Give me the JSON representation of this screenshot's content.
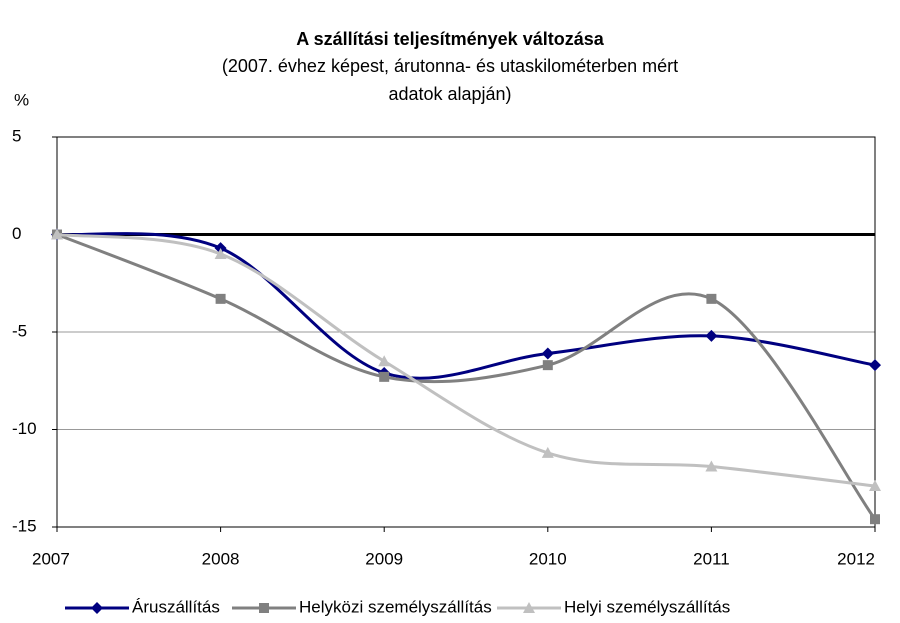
{
  "chart_data": {
    "type": "line",
    "title": "A szállítási teljesítmények változása",
    "subtitle": [
      "(2007. évhez képest, árutonna- és utaskilométerben mért",
      "adatok alapján)"
    ],
    "y_label": "%",
    "x": [
      2007,
      2008,
      2009,
      2010,
      2011,
      2012
    ],
    "xlim": [
      2007,
      2012
    ],
    "xticks": [
      2007,
      2008,
      2009,
      2010,
      2011,
      2012
    ],
    "ylim": [
      -15,
      5
    ],
    "yticks": [
      5,
      0,
      -5,
      -10,
      -15
    ],
    "grid": true,
    "smooth": true,
    "legend": "bottom",
    "series": [
      {
        "name": "Áruszállítás",
        "color": "#000080",
        "marker": "diamond",
        "values": [
          0,
          -0.7,
          -7.1,
          -6.1,
          -5.2,
          -6.7
        ]
      },
      {
        "name": "Helyközi személyszállítás",
        "color": "#808080",
        "marker": "square",
        "values": [
          0,
          -3.3,
          -7.3,
          -6.7,
          -3.3,
          -14.6
        ]
      },
      {
        "name": "Helyi személyszállítás",
        "color": "#c0c0c0",
        "marker": "triangle",
        "values": [
          0,
          -1.0,
          -6.5,
          -11.2,
          -11.9,
          -12.9
        ]
      }
    ]
  }
}
